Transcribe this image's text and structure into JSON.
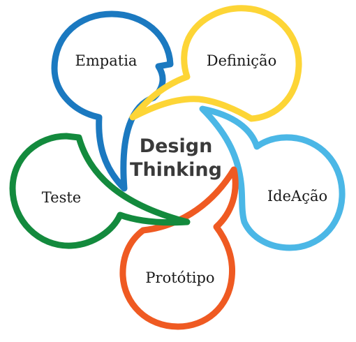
{
  "diagram": {
    "center": {
      "line1": "Design",
      "line2": "Thinking"
    },
    "stages": [
      {
        "label": "Empatia",
        "color": "#1b79c0"
      },
      {
        "label": "Definição",
        "color": "#fdd536"
      },
      {
        "label": "IdeAção",
        "color": "#4bb7e6"
      },
      {
        "label": "Protótipo",
        "color": "#ef5a22"
      },
      {
        "label": "Teste",
        "color": "#138a3d"
      }
    ]
  }
}
